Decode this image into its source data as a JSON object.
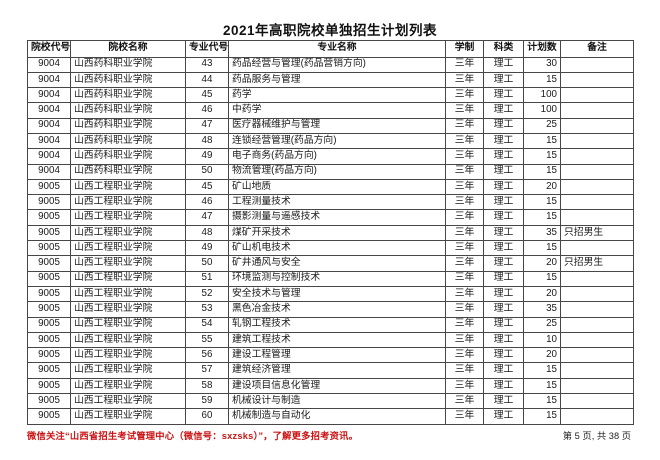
{
  "title": "2021年高职院校单独招生计划列表",
  "table": {
    "headers": [
      "院校代号",
      "院校名称",
      "专业代号",
      "专业名称",
      "学制",
      "科类",
      "计划数",
      "备注"
    ],
    "rows": [
      [
        "9004",
        "山西药科职业学院",
        "43",
        "药品经营与管理(药品营销方向)",
        "三年",
        "理工",
        "30",
        ""
      ],
      [
        "9004",
        "山西药科职业学院",
        "44",
        "药品服务与管理",
        "三年",
        "理工",
        "15",
        ""
      ],
      [
        "9004",
        "山西药科职业学院",
        "45",
        "药学",
        "三年",
        "理工",
        "100",
        ""
      ],
      [
        "9004",
        "山西药科职业学院",
        "46",
        "中药学",
        "三年",
        "理工",
        "100",
        ""
      ],
      [
        "9004",
        "山西药科职业学院",
        "47",
        "医疗器械维护与管理",
        "三年",
        "理工",
        "25",
        ""
      ],
      [
        "9004",
        "山西药科职业学院",
        "48",
        "连锁经营管理(药品方向)",
        "三年",
        "理工",
        "15",
        ""
      ],
      [
        "9004",
        "山西药科职业学院",
        "49",
        "电子商务(药品方向)",
        "三年",
        "理工",
        "15",
        ""
      ],
      [
        "9004",
        "山西药科职业学院",
        "50",
        "物流管理(药品方向)",
        "三年",
        "理工",
        "15",
        ""
      ],
      [
        "9005",
        "山西工程职业学院",
        "45",
        "矿山地质",
        "三年",
        "理工",
        "20",
        ""
      ],
      [
        "9005",
        "山西工程职业学院",
        "46",
        "工程测量技术",
        "三年",
        "理工",
        "15",
        ""
      ],
      [
        "9005",
        "山西工程职业学院",
        "47",
        "摄影测量与遥感技术",
        "三年",
        "理工",
        "15",
        ""
      ],
      [
        "9005",
        "山西工程职业学院",
        "48",
        "煤矿开采技术",
        "三年",
        "理工",
        "35",
        "只招男生"
      ],
      [
        "9005",
        "山西工程职业学院",
        "49",
        "矿山机电技术",
        "三年",
        "理工",
        "15",
        ""
      ],
      [
        "9005",
        "山西工程职业学院",
        "50",
        "矿井通风与安全",
        "三年",
        "理工",
        "20",
        "只招男生"
      ],
      [
        "9005",
        "山西工程职业学院",
        "51",
        "环境监测与控制技术",
        "三年",
        "理工",
        "15",
        ""
      ],
      [
        "9005",
        "山西工程职业学院",
        "52",
        "安全技术与管理",
        "三年",
        "理工",
        "20",
        ""
      ],
      [
        "9005",
        "山西工程职业学院",
        "53",
        "黑色冶金技术",
        "三年",
        "理工",
        "35",
        ""
      ],
      [
        "9005",
        "山西工程职业学院",
        "54",
        "轧钢工程技术",
        "三年",
        "理工",
        "25",
        ""
      ],
      [
        "9005",
        "山西工程职业学院",
        "55",
        "建筑工程技术",
        "三年",
        "理工",
        "10",
        ""
      ],
      [
        "9005",
        "山西工程职业学院",
        "56",
        "建设工程管理",
        "三年",
        "理工",
        "20",
        ""
      ],
      [
        "9005",
        "山西工程职业学院",
        "57",
        "建筑经济管理",
        "三年",
        "理工",
        "15",
        ""
      ],
      [
        "9005",
        "山西工程职业学院",
        "58",
        "建设项目信息化管理",
        "三年",
        "理工",
        "15",
        ""
      ],
      [
        "9005",
        "山西工程职业学院",
        "59",
        "机械设计与制造",
        "三年",
        "理工",
        "15",
        ""
      ],
      [
        "9005",
        "山西工程职业学院",
        "60",
        "机械制造与自动化",
        "三年",
        "理工",
        "15",
        ""
      ]
    ]
  },
  "footer": {
    "notice": "微信关注“山西省招生考试管理中心（微信号：sxzsks）”，了解更多招考资讯。",
    "notice_color": "#cc1414",
    "page_info": "第 5 页, 共 38 页"
  }
}
